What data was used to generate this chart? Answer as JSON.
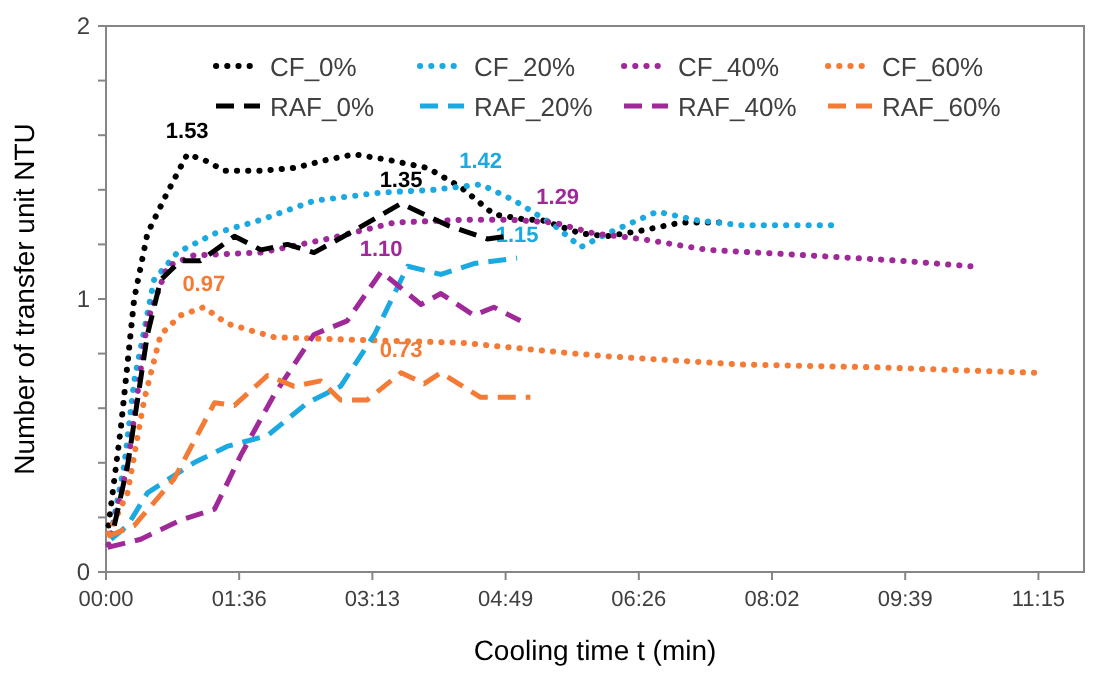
{
  "chart_data": {
    "type": "line",
    "xlabel": "Cooling time t (min)",
    "ylabel": "Number of transfer unit NTU",
    "xlim": [
      0,
      11.8
    ],
    "xticks": [
      {
        "value": 0,
        "label": "00:00"
      },
      {
        "value": 1.6071,
        "label": "01:36"
      },
      {
        "value": 3.2143,
        "label": "03:13"
      },
      {
        "value": 4.8214,
        "label": "04:49"
      },
      {
        "value": 6.4286,
        "label": "06:26"
      },
      {
        "value": 8.0357,
        "label": "08:02"
      },
      {
        "value": 9.6429,
        "label": "09:39"
      },
      {
        "value": 11.25,
        "label": "11:15"
      }
    ],
    "ylim": [
      0,
      2
    ],
    "yticks": [
      0,
      {
        "value": 0.2,
        "label": null
      },
      {
        "value": 0.4,
        "label": null
      },
      {
        "value": 0.6,
        "label": null
      },
      {
        "value": 0.8,
        "label": null
      },
      1,
      {
        "value": 1.2,
        "label": null
      },
      {
        "value": 1.4,
        "label": null
      },
      {
        "value": 1.6,
        "label": null
      },
      {
        "value": 1.8,
        "label": null
      },
      2
    ],
    "grid": false,
    "legend": "top",
    "marker": "none",
    "series": [
      {
        "name": "CF_0%",
        "color": "#000000",
        "line_style": "dotted",
        "x": [
          0.03,
          0.18,
          0.34,
          0.5,
          0.74,
          0.98,
          1.18,
          1.43,
          1.87,
          2.27,
          2.67,
          2.99,
          3.4,
          3.88,
          4.28,
          4.68,
          5.08,
          5.25,
          5.73,
          6.05,
          6.45,
          6.94,
          7.46
        ],
        "values": [
          0.17,
          0.53,
          1.0,
          1.24,
          1.39,
          1.53,
          1.51,
          1.47,
          1.47,
          1.48,
          1.51,
          1.53,
          1.51,
          1.48,
          1.41,
          1.31,
          1.29,
          1.29,
          1.24,
          1.23,
          1.25,
          1.28,
          1.28
        ]
      },
      {
        "name": "CF_20%",
        "color": "#1ba9e1",
        "line_style": "dotted",
        "x": [
          0.06,
          0.22,
          0.34,
          0.58,
          0.86,
          1.31,
          1.87,
          2.51,
          3.32,
          3.96,
          4.52,
          4.93,
          5.41,
          5.73,
          6.05,
          6.65,
          7.1,
          7.66,
          8.75
        ],
        "values": [
          0.14,
          0.39,
          0.7,
          1.07,
          1.17,
          1.24,
          1.29,
          1.36,
          1.39,
          1.4,
          1.42,
          1.36,
          1.27,
          1.19,
          1.24,
          1.32,
          1.29,
          1.27,
          1.27
        ]
      },
      {
        "name": "CF_40%",
        "color": "#a0299a",
        "line_style": "dotted",
        "x": [
          0.03,
          0.26,
          0.5,
          0.74,
          1.06,
          1.87,
          2.67,
          3.48,
          4.28,
          4.9,
          5.41,
          5.89,
          6.45,
          7.26,
          8.46,
          9.59,
          10.43
        ],
        "values": [
          0.1,
          0.39,
          0.92,
          1.12,
          1.16,
          1.17,
          1.22,
          1.28,
          1.29,
          1.29,
          1.28,
          1.24,
          1.22,
          1.18,
          1.16,
          1.14,
          1.12
        ]
      },
      {
        "name": "CF_60%",
        "color": "#f47b36",
        "line_style": "dotted",
        "x": [
          0.03,
          0.26,
          0.46,
          0.66,
          0.9,
          1.18,
          1.46,
          2.03,
          3.07,
          4.28,
          5.65,
          6.05,
          7.66,
          9.27,
          11.2
        ],
        "values": [
          0.14,
          0.29,
          0.63,
          0.87,
          0.94,
          0.97,
          0.91,
          0.86,
          0.85,
          0.84,
          0.8,
          0.79,
          0.76,
          0.75,
          0.73
        ]
      },
      {
        "name": "RAF_0%",
        "color": "#000000",
        "line_style": "dashed",
        "x": [
          0.1,
          0.26,
          0.5,
          0.66,
          0.9,
          1.14,
          1.55,
          1.87,
          2.19,
          2.51,
          2.99,
          3.56,
          4.12,
          4.6,
          4.84
        ],
        "values": [
          0.17,
          0.39,
          0.87,
          1.07,
          1.14,
          1.14,
          1.23,
          1.18,
          1.2,
          1.17,
          1.25,
          1.35,
          1.27,
          1.22,
          1.23
        ]
      },
      {
        "name": "RAF_20%",
        "color": "#1ba9e1",
        "line_style": "dashed",
        "x": [
          0.06,
          0.26,
          0.5,
          1.06,
          1.46,
          1.95,
          2.43,
          2.83,
          3.24,
          3.64,
          4.04,
          4.44,
          4.96
        ],
        "values": [
          0.12,
          0.17,
          0.29,
          0.4,
          0.46,
          0.5,
          0.62,
          0.68,
          0.87,
          1.12,
          1.09,
          1.13,
          1.15
        ]
      },
      {
        "name": "RAF_40%",
        "color": "#a0299a",
        "line_style": "dashed",
        "x": [
          0.02,
          0.42,
          0.9,
          1.31,
          1.63,
          2.03,
          2.51,
          2.91,
          3.32,
          3.8,
          4.04,
          4.44,
          4.68,
          5.0
        ],
        "values": [
          0.09,
          0.12,
          0.19,
          0.23,
          0.43,
          0.65,
          0.87,
          0.92,
          1.1,
          0.98,
          1.02,
          0.94,
          0.97,
          0.92
        ]
      },
      {
        "name": "RAF_60%",
        "color": "#f47b36",
        "line_style": "dashed",
        "x": [
          0.02,
          0.34,
          0.82,
          1.31,
          1.55,
          1.95,
          2.27,
          2.59,
          2.83,
          3.15,
          3.56,
          3.84,
          4.04,
          4.52,
          5.12
        ],
        "values": [
          0.13,
          0.17,
          0.34,
          0.62,
          0.61,
          0.72,
          0.68,
          0.7,
          0.63,
          0.63,
          0.73,
          0.69,
          0.73,
          0.64,
          0.64
        ]
      }
    ],
    "annotations": [
      {
        "text": "1.53",
        "x": 0.98,
        "y": 1.53
      },
      {
        "text": "1.35",
        "x": 3.56,
        "y": 1.35
      },
      {
        "text": "1.42",
        "x": 4.52,
        "y": 1.42
      },
      {
        "text": "1.29",
        "x": 5.45,
        "y": 1.29
      },
      {
        "text": "1.10",
        "x": 3.32,
        "y": 1.1
      },
      {
        "text": "1.15",
        "x": 4.96,
        "y": 1.15
      },
      {
        "text": "0.97",
        "x": 1.18,
        "y": 0.97
      },
      {
        "text": "0.73",
        "x": 3.56,
        "y": 0.73
      }
    ]
  }
}
